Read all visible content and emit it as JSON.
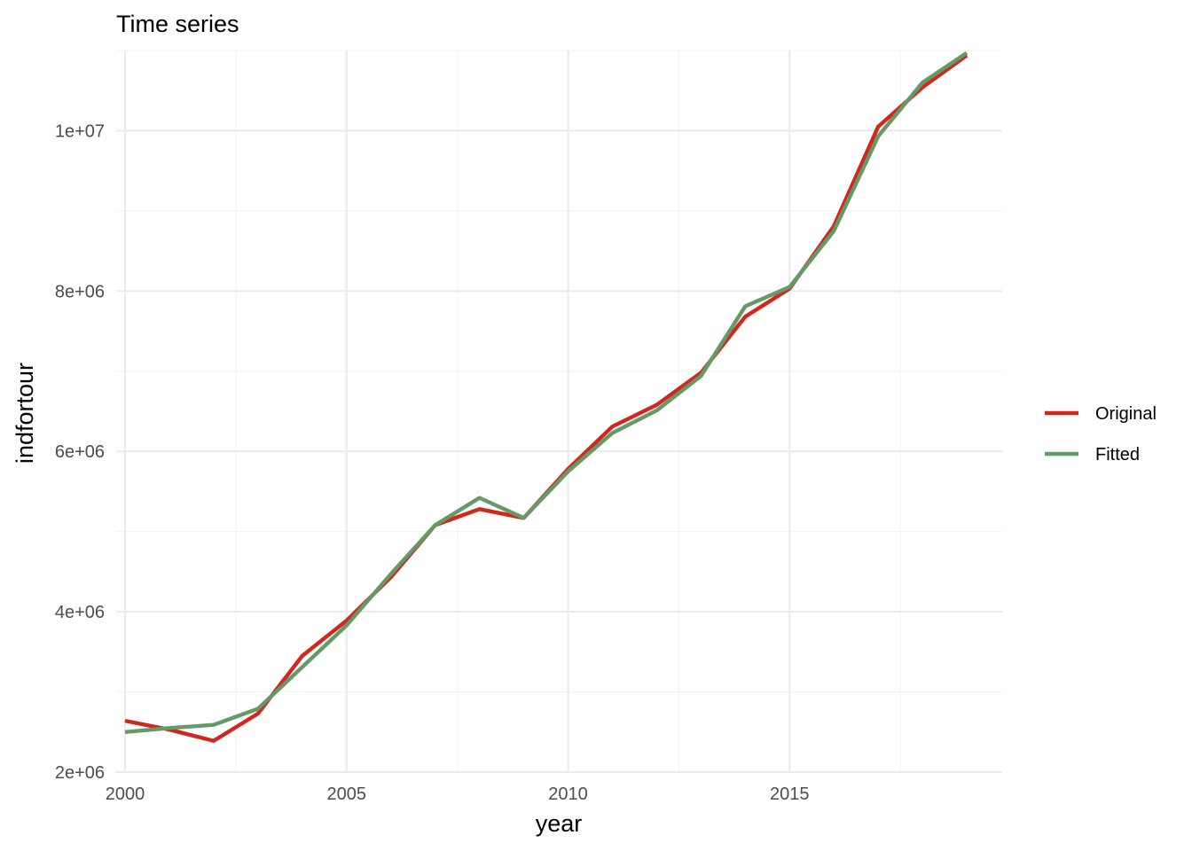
{
  "chart_data": {
    "type": "line",
    "title": "Time series",
    "xlabel": "year",
    "ylabel": "indfortour",
    "xlim": [
      1999.8,
      2019.8
    ],
    "ylim": [
      2000000,
      11000000
    ],
    "x_ticks": [
      2000,
      2005,
      2010,
      2015
    ],
    "x_tick_labels": [
      "2000",
      "2005",
      "2010",
      "2015"
    ],
    "y_ticks": [
      2000000,
      4000000,
      6000000,
      8000000,
      10000000
    ],
    "y_tick_labels": [
      "2e+06",
      "4e+06",
      "6e+06",
      "8e+06",
      "1e+07"
    ],
    "grid": true,
    "legend_position": "right",
    "x": [
      2000,
      2001,
      2002,
      2003,
      2004,
      2005,
      2006,
      2007,
      2008,
      2009,
      2010,
      2011,
      2012,
      2013,
      2014,
      2015,
      2016,
      2017,
      2018,
      2019
    ],
    "series": [
      {
        "name": "Original",
        "color": "#d0281e",
        "values": [
          2640000,
          2530000,
          2390000,
          2730000,
          3450000,
          3890000,
          4430000,
          5080000,
          5280000,
          5170000,
          5780000,
          6310000,
          6580000,
          6980000,
          7680000,
          8030000,
          8810000,
          10050000,
          10540000,
          10940000
        ]
      },
      {
        "name": "Fitted",
        "color": "#659965",
        "values": [
          2500000,
          2550000,
          2590000,
          2790000,
          3310000,
          3830000,
          4470000,
          5080000,
          5420000,
          5170000,
          5750000,
          6230000,
          6510000,
          6940000,
          7810000,
          8050000,
          8750000,
          9930000,
          10600000,
          10970000
        ]
      }
    ]
  }
}
